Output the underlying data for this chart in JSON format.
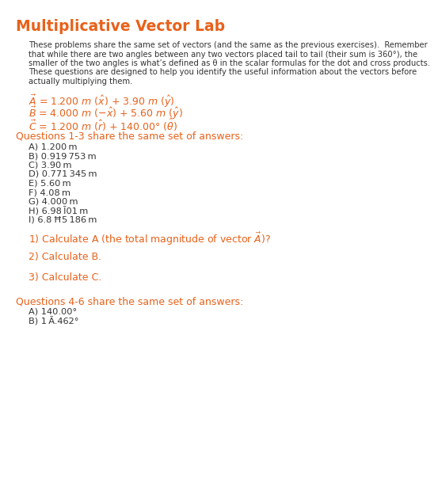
{
  "title": "Multiplicative Vector Lab",
  "orange": "#E8611A",
  "dark": "#333333",
  "bg": "#FFFFFF",
  "intro_lines": [
    "These problems share the same set of vectors (and the same as the previous exercises).  Remember",
    "that while there are two angles between any two vectors placed tail to tail (their sum is 360°), the",
    "smaller of the two angles is what’s defined as θ in the scalar formulas for the dot and cross products.",
    "These questions are designed to help you identify the useful information about the vectors before",
    "actually multiplying them."
  ],
  "q13_header": "Questions 1-3 share the same set of answers:",
  "q13_answers": [
    [
      "A) 1.200 ",
      "m"
    ],
    [
      "B) 0.919 753 ",
      "m"
    ],
    [
      "C) 3.90 ",
      "m"
    ],
    [
      "D) 0.771 345 ",
      "m"
    ],
    [
      "E) 5.60 ",
      "m"
    ],
    [
      "F) 4.08 ",
      "m"
    ],
    [
      "G) 4.000 ",
      "m"
    ],
    [
      "H) 6.98 Ī01 ",
      "m"
    ],
    [
      "I) 6.8 Ħ5 186 ",
      "m"
    ]
  ],
  "q1": "1) Calculate A (the total magnitude of vector Â)?",
  "q2": "2) Calculate B.",
  "q3": "3) Calculate C.",
  "q46_header": "Questions 4-6 share the same set of answers:",
  "q46_answers": [
    "A) 140.00°",
    "B) 1 Ā.462°"
  ]
}
